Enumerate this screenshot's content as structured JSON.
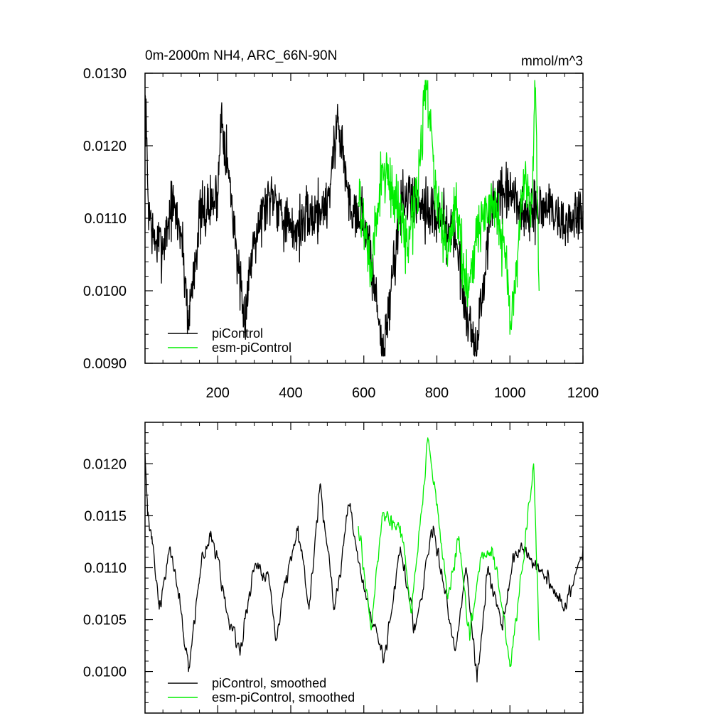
{
  "chart_data": [
    {
      "type": "line",
      "title": "0m-2000m NH4, ARC_66N-90N",
      "units": "mmol/m^3",
      "xlim": [
        1,
        1200
      ],
      "ylim": [
        0.009,
        0.013
      ],
      "xticks": [
        200,
        400,
        600,
        800,
        1000,
        1200
      ],
      "yticks": [
        0.009,
        0.01,
        0.011,
        0.012,
        0.013
      ],
      "ytick_labels": [
        "0.0090",
        "0.0100",
        "0.0110",
        "0.0120",
        "0.0130"
      ],
      "legend_position": "bottom-left",
      "grid": false,
      "series": [
        {
          "name": "piControl",
          "color": "#000000",
          "x_range": [
            1,
            1200
          ],
          "mean": 0.011,
          "approx_range": [
            0.0091,
            0.0128
          ],
          "sampled_points": [
            [
              1,
              0.0127
            ],
            [
              5,
              0.0121
            ],
            [
              10,
              0.0112
            ],
            [
              25,
              0.0107
            ],
            [
              50,
              0.0106
            ],
            [
              75,
              0.0112
            ],
            [
              100,
              0.0108
            ],
            [
              120,
              0.0096
            ],
            [
              150,
              0.011
            ],
            [
              200,
              0.0113
            ],
            [
              210,
              0.0125
            ],
            [
              250,
              0.0107
            ],
            [
              270,
              0.0095
            ],
            [
              300,
              0.0108
            ],
            [
              350,
              0.0114
            ],
            [
              400,
              0.0108
            ],
            [
              450,
              0.011
            ],
            [
              500,
              0.0112
            ],
            [
              530,
              0.0124
            ],
            [
              560,
              0.0112
            ],
            [
              600,
              0.011
            ],
            [
              620,
              0.0104
            ],
            [
              655,
              0.0091
            ],
            [
              700,
              0.0112
            ],
            [
              750,
              0.0113
            ],
            [
              800,
              0.011
            ],
            [
              850,
              0.0108
            ],
            [
              880,
              0.0097
            ],
            [
              910,
              0.0092
            ],
            [
              950,
              0.0112
            ],
            [
              1000,
              0.0113
            ],
            [
              1050,
              0.011
            ],
            [
              1100,
              0.0112
            ],
            [
              1150,
              0.0109
            ],
            [
              1200,
              0.0111
            ]
          ]
        },
        {
          "name": "esm-piControl",
          "color": "#00ee00",
          "x_range": [
            585,
            1080
          ],
          "mean": 0.011,
          "approx_range": [
            0.0094,
            0.0129
          ],
          "sampled_points": [
            [
              585,
              0.0112
            ],
            [
              600,
              0.0109
            ],
            [
              620,
              0.0102
            ],
            [
              650,
              0.0117
            ],
            [
              700,
              0.0111
            ],
            [
              720,
              0.0106
            ],
            [
              750,
              0.0116
            ],
            [
              770,
              0.0129
            ],
            [
              800,
              0.0112
            ],
            [
              830,
              0.0105
            ],
            [
              850,
              0.0113
            ],
            [
              880,
              0.01
            ],
            [
              910,
              0.0108
            ],
            [
              950,
              0.0112
            ],
            [
              990,
              0.0105
            ],
            [
              1000,
              0.0094
            ],
            [
              1040,
              0.0116
            ],
            [
              1060,
              0.0112
            ],
            [
              1070,
              0.0128
            ],
            [
              1080,
              0.01
            ]
          ]
        }
      ]
    },
    {
      "type": "line",
      "title": "",
      "xlim": [
        1,
        1200
      ],
      "ylim": [
        0.0096,
        0.0124
      ],
      "xticks": [
        200,
        400,
        600,
        800,
        1000,
        1200
      ],
      "yticks": [
        0.01,
        0.0105,
        0.011,
        0.0115,
        0.012
      ],
      "ytick_labels": [
        "0.0100",
        "0.0105",
        "0.0110",
        "0.0115",
        "0.0120"
      ],
      "legend_position": "bottom-left",
      "grid": false,
      "series": [
        {
          "name": "piControl, smoothed",
          "color": "#000000",
          "x_range": [
            1,
            1200
          ],
          "mean": 0.011,
          "approx_range": [
            0.0099,
            0.0121
          ],
          "sampled_points": [
            [
              1,
              0.0121
            ],
            [
              8,
              0.0115
            ],
            [
              20,
              0.0113
            ],
            [
              40,
              0.0106
            ],
            [
              70,
              0.0112
            ],
            [
              90,
              0.0108
            ],
            [
              120,
              0.01
            ],
            [
              150,
              0.0109
            ],
            [
              180,
              0.0113
            ],
            [
              200,
              0.0111
            ],
            [
              230,
              0.0105
            ],
            [
              260,
              0.0102
            ],
            [
              300,
              0.011
            ],
            [
              340,
              0.0109
            ],
            [
              360,
              0.0103
            ],
            [
              380,
              0.0108
            ],
            [
              420,
              0.0114
            ],
            [
              450,
              0.0106
            ],
            [
              480,
              0.0118
            ],
            [
              520,
              0.0106
            ],
            [
              560,
              0.0116
            ],
            [
              600,
              0.0108
            ],
            [
              655,
              0.0101
            ],
            [
              700,
              0.0112
            ],
            [
              740,
              0.0104
            ],
            [
              790,
              0.0114
            ],
            [
              820,
              0.0108
            ],
            [
              850,
              0.0102
            ],
            [
              880,
              0.011
            ],
            [
              910,
              0.0099
            ],
            [
              940,
              0.011
            ],
            [
              980,
              0.0104
            ],
            [
              1010,
              0.0111
            ],
            [
              1040,
              0.0112
            ],
            [
              1100,
              0.0109
            ],
            [
              1150,
              0.0106
            ],
            [
              1200,
              0.0112
            ]
          ]
        },
        {
          "name": "esm-piControl, smoothed",
          "color": "#00ee00",
          "x_range": [
            585,
            1080
          ],
          "mean": 0.011,
          "approx_range": [
            0.01005,
            0.01225
          ],
          "sampled_points": [
            [
              585,
              0.0114
            ],
            [
              600,
              0.011
            ],
            [
              620,
              0.0104
            ],
            [
              650,
              0.0115
            ],
            [
              700,
              0.0114
            ],
            [
              730,
              0.0106
            ],
            [
              760,
              0.0116
            ],
            [
              775,
              0.01225
            ],
            [
              800,
              0.0116
            ],
            [
              830,
              0.0107
            ],
            [
              860,
              0.0113
            ],
            [
              890,
              0.0103
            ],
            [
              920,
              0.0111
            ],
            [
              950,
              0.0112
            ],
            [
              980,
              0.0106
            ],
            [
              1000,
              0.01005
            ],
            [
              1040,
              0.0112
            ],
            [
              1065,
              0.012
            ],
            [
              1080,
              0.0103
            ]
          ]
        }
      ]
    }
  ]
}
